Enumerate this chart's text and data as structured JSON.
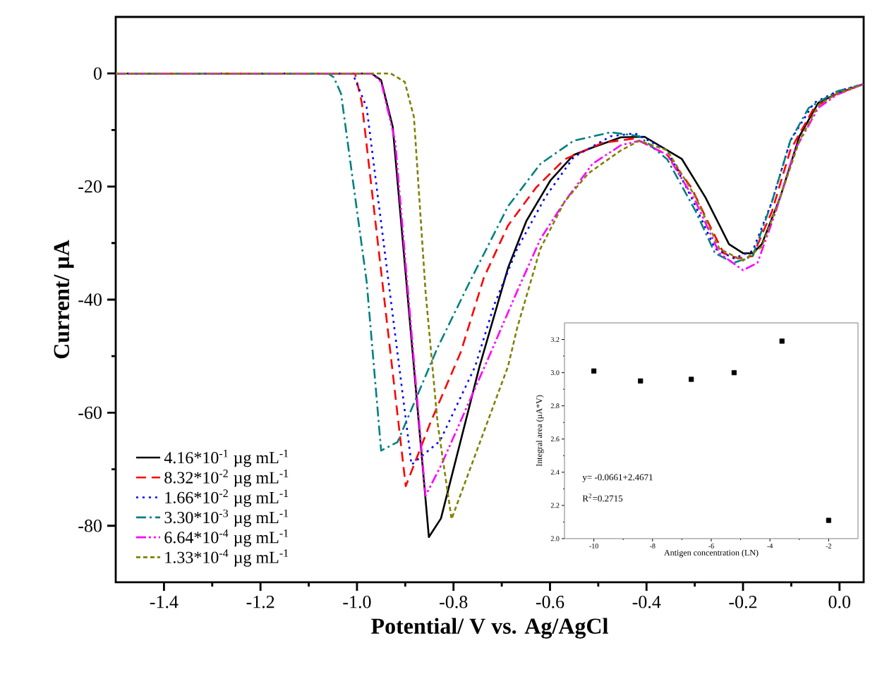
{
  "chart_data": [
    {
      "type": "line",
      "xlabel": "Potential/ V vs. Ag/AgCl",
      "ylabel": "Current/ µA",
      "xlim": [
        -1.5,
        0.05
      ],
      "ylim": [
        -90,
        10
      ],
      "xticks": [
        -1.4,
        -1.2,
        {
          "value": -1,
          "label": "-1.0"
        },
        -0.8,
        -0.6,
        -0.4,
        -0.2,
        {
          "value": 0,
          "label": "0.0"
        }
      ],
      "yticks": [
        -80,
        -60,
        -40,
        -20,
        0
      ],
      "legend": "bottom left",
      "grid": false,
      "series": [
        {
          "name": "4.16*10$^{-1}$ µg mL$^{-1}$",
          "color": "#000000",
          "line_style": "solid",
          "x": [
            -1.5,
            -0.97,
            -0.95,
            -0.926,
            -0.851,
            -0.826,
            -0.746,
            -0.687,
            -0.649,
            -0.599,
            -0.551,
            -0.512,
            -0.453,
            -0.404,
            -0.327,
            -0.278,
            -0.229,
            -0.2,
            -0.18,
            -0.161,
            -0.123,
            -0.083,
            -0.044,
            -0.006,
            0.049
          ],
          "values": [
            0,
            0,
            -1.2,
            -9.4,
            -82,
            -78.7,
            -51.8,
            -34.4,
            -26.1,
            -18.9,
            -14.4,
            -13.1,
            -11.3,
            -11.2,
            -15.1,
            -21.9,
            -30.2,
            -31.8,
            -31.8,
            -30.2,
            -21.9,
            -11.1,
            -5.2,
            -3.6,
            -1.9
          ]
        },
        {
          "name": "8.32*10$^{-2}$ µg mL$^{-1}$",
          "color": "#ff0000",
          "line_style": "dashed",
          "x": [
            -1.5,
            -1.004,
            -0.99,
            -0.899,
            -0.848,
            -0.785,
            -0.737,
            -0.687,
            -0.629,
            -0.57,
            -0.492,
            -0.424,
            -0.357,
            -0.307,
            -0.269,
            -0.24,
            -0.21,
            -0.18,
            -0.14,
            -0.102,
            -0.053,
            -0.006,
            0.049
          ],
          "values": [
            0,
            0,
            -5.2,
            -73,
            -61.8,
            -49.3,
            -36.1,
            -26.9,
            -20.2,
            -15.2,
            -12.3,
            -11.5,
            -14.4,
            -20.2,
            -26.9,
            -31.8,
            -32.7,
            -32.3,
            -24.4,
            -13.6,
            -6.1,
            -3.6,
            -1.9
          ]
        },
        {
          "name": "1.66*10$^{-2}$ µg mL$^{-1}$",
          "color": "#0000ff",
          "line_style": "dotted",
          "x": [
            -1.5,
            -1.009,
            -0.98,
            -0.887,
            -0.828,
            -0.755,
            -0.716,
            -0.668,
            -0.61,
            -0.551,
            -0.474,
            -0.424,
            -0.357,
            -0.307,
            -0.258,
            -0.219,
            -0.18,
            -0.14,
            -0.102,
            -0.053,
            -0.006,
            0.049
          ],
          "values": [
            0,
            0,
            -6,
            -69.2,
            -65,
            -51.8,
            -41,
            -31,
            -21.9,
            -14.8,
            -11.1,
            -10.6,
            -13.6,
            -21.9,
            -31,
            -32.7,
            -31.4,
            -22.7,
            -11.9,
            -5.2,
            -3.2,
            -1.9
          ]
        },
        {
          "name": "3.30*10$^{-3}$ µg mL$^{-1}$",
          "color": "#008080",
          "line_style": "dashdot",
          "x": [
            -1.5,
            -1.06,
            -1.048,
            -1.033,
            -0.98,
            -0.95,
            -0.916,
            -0.833,
            -0.766,
            -0.687,
            -0.62,
            -0.551,
            -0.474,
            -0.415,
            -0.357,
            -0.298,
            -0.258,
            -0.219,
            -0.18,
            -0.14,
            -0.102,
            -0.064,
            -0.006,
            0.049
          ],
          "values": [
            0,
            0,
            -0.7,
            -3.6,
            -36.8,
            -66.7,
            -65.2,
            -48.5,
            -36.8,
            -23.5,
            -16,
            -11.9,
            -10.4,
            -11.1,
            -15.2,
            -24.4,
            -31.8,
            -33.5,
            -32.3,
            -22.7,
            -11.9,
            -6.1,
            -3.2,
            -1.9
          ]
        },
        {
          "name": "6.64*10$^{-4}$ µg mL$^{-1}$",
          "color": "#ff00ff",
          "line_style": "dashdotdot",
          "x": [
            -1.5,
            -0.97,
            -0.95,
            -0.921,
            -0.858,
            -0.825,
            -0.726,
            -0.668,
            -0.62,
            -0.57,
            -0.512,
            -0.453,
            -0.415,
            -0.357,
            -0.298,
            -0.249,
            -0.2,
            -0.17,
            -0.132,
            -0.093,
            -0.044,
            -0.006,
            0.049
          ],
          "values": [
            0,
            0,
            -1.5,
            -11.9,
            -74.7,
            -69.2,
            -50,
            -38.5,
            -29.3,
            -22.7,
            -16,
            -12.7,
            -11.9,
            -14.4,
            -22.7,
            -31.8,
            -34.8,
            -33.5,
            -24.4,
            -13.6,
            -6.1,
            -3.8,
            -1.9
          ]
        },
        {
          "name": "1.33*10$^{-4}$ µg mL$^{-1}$",
          "color": "#808000",
          "line_style": "shortdashed",
          "x": [
            -1.5,
            -0.93,
            -0.901,
            -0.882,
            -0.858,
            -0.833,
            -0.804,
            -0.687,
            -0.668,
            -0.62,
            -0.57,
            -0.521,
            -0.453,
            -0.415,
            -0.357,
            -0.298,
            -0.249,
            -0.2,
            -0.161,
            -0.123,
            -0.083,
            -0.044,
            -0.006,
            0.049
          ],
          "values": [
            0,
            0,
            -1.5,
            -7.7,
            -38.5,
            -61.8,
            -78.8,
            -51.8,
            -45,
            -31,
            -22.7,
            -17.7,
            -13.6,
            -11.9,
            -13.6,
            -21.9,
            -31,
            -33.1,
            -30.6,
            -21.9,
            -11.9,
            -5.6,
            -3.6,
            -1.9
          ]
        }
      ]
    },
    {
      "type": "scatter",
      "xlabel": "Antigen concentration (LN)",
      "ylabel": "Integral area (µA*V)",
      "xlim": [
        -11,
        -1
      ],
      "ylim": [
        2.0,
        3.3
      ],
      "xticks": [
        -10,
        -8,
        -6,
        -4,
        -2
      ],
      "yticks": [
        {
          "value": 2.0,
          "label": "2.0"
        },
        {
          "value": 2.2,
          "label": "2.2"
        },
        {
          "value": 2.4,
          "label": "2.4"
        },
        {
          "value": 2.6,
          "label": "2.6"
        },
        {
          "value": 2.8,
          "label": "2.8"
        },
        {
          "value": 3.0,
          "label": "3.0"
        },
        {
          "value": 3.2,
          "label": "3.2"
        }
      ],
      "marker": "square",
      "legend": false,
      "grid": false,
      "annotations": [
        "y= -0.0661+2.4671",
        "R$^{2}$=0.2715"
      ],
      "series": [
        {
          "color": "#000000",
          "x": [
            -10.0,
            -8.41,
            -6.68,
            -5.22,
            -3.59,
            -2.0
          ],
          "values": [
            3.01,
            2.95,
            2.96,
            3.0,
            3.19,
            2.11
          ]
        }
      ]
    }
  ]
}
